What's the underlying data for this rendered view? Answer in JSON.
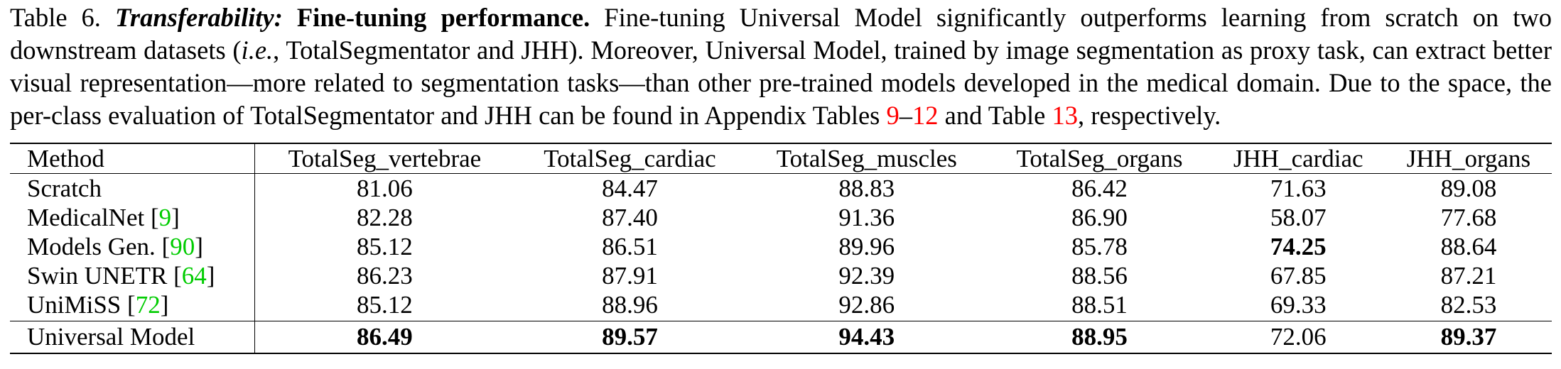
{
  "caption": {
    "label": "Table 6.",
    "title_italic": "Transferability:",
    "title_bold": "Fine-tuning performance.",
    "text_1": "Fine-tuning Universal Model significantly outperforms learning from scratch on two downstream datasets (",
    "text_ie": "i.e.",
    "text_2": ", TotalSegmentator and JHH). Moreover, Universal Model, trained by image segmentation as proxy task, can extract better visual representation—more related to segmentation tasks—than other pre-trained models developed in the medical domain. Due to the space, the per-class evaluation of TotalSegmentator and JHH can be found in Appendix Tables ",
    "ref_a": "9",
    "dash": "–",
    "ref_b": "12",
    "text_3": " and Table ",
    "ref_c": "13",
    "text_4": ", respectively."
  },
  "table": {
    "headers": [
      "Method",
      "TotalSeg_vertebrae",
      "TotalSeg_cardiac",
      "TotalSeg_muscles",
      "TotalSeg_organs",
      "JHH_cardiac",
      "JHH_organs"
    ],
    "rows": [
      {
        "method": "Scratch",
        "ref": "",
        "values": [
          "81.06",
          "84.47",
          "88.83",
          "86.42",
          "71.63",
          "89.08"
        ]
      },
      {
        "method": "MedicalNet ",
        "ref": "9",
        "values": [
          "82.28",
          "87.40",
          "91.36",
          "86.90",
          "58.07",
          "77.68"
        ]
      },
      {
        "method": "Models Gen. ",
        "ref": "90",
        "values": [
          "85.12",
          "86.51",
          "89.96",
          "85.78",
          "74.25",
          "88.64"
        ]
      },
      {
        "method": "Swin UNETR ",
        "ref": "64",
        "values": [
          "86.23",
          "87.91",
          "92.39",
          "88.56",
          "67.85",
          "87.21"
        ]
      },
      {
        "method": "UniMiSS ",
        "ref": "72",
        "values": [
          "85.12",
          "88.96",
          "92.86",
          "88.51",
          "69.33",
          "82.53"
        ]
      }
    ],
    "ours": {
      "method": "Universal Model",
      "values": [
        "86.49",
        "89.57",
        "94.43",
        "88.95",
        "72.06",
        "89.37"
      ]
    },
    "bold_cells": {
      "models_gen_jhh_cardiac": true,
      "ours_bold_columns": [
        0,
        1,
        2,
        3,
        5
      ]
    }
  }
}
